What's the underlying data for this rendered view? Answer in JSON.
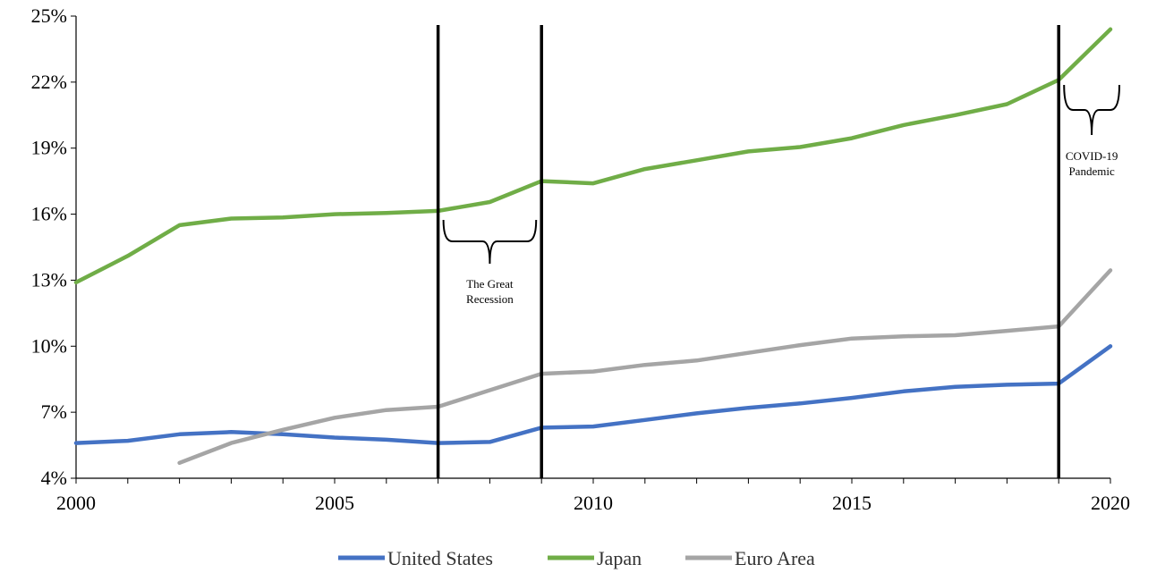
{
  "chart_data": {
    "type": "line",
    "x": [
      2000,
      2001,
      2002,
      2003,
      2004,
      2005,
      2006,
      2007,
      2008,
      2009,
      2010,
      2011,
      2012,
      2013,
      2014,
      2015,
      2016,
      2017,
      2018,
      2019,
      2020
    ],
    "series": [
      {
        "name": "United States",
        "color": "#4472C4",
        "values": [
          5.6,
          5.7,
          6.0,
          6.1,
          6.0,
          5.85,
          5.75,
          5.6,
          5.65,
          6.3,
          6.35,
          6.65,
          6.95,
          7.2,
          7.4,
          7.65,
          7.95,
          8.15,
          8.25,
          8.3,
          10.0
        ]
      },
      {
        "name": "Japan",
        "color": "#70AD47",
        "values": [
          12.9,
          14.1,
          15.5,
          15.8,
          15.85,
          16.0,
          16.05,
          16.15,
          16.55,
          17.5,
          17.4,
          18.05,
          18.45,
          18.85,
          19.05,
          19.45,
          20.05,
          20.5,
          21.0,
          22.1,
          24.4
        ]
      },
      {
        "name": "Euro Area",
        "color": "#A5A5A5",
        "values": [
          null,
          null,
          4.7,
          5.6,
          6.2,
          6.75,
          7.1,
          7.25,
          8.0,
          8.75,
          8.85,
          9.15,
          9.35,
          9.7,
          10.05,
          10.35,
          10.45,
          10.5,
          10.7,
          10.9,
          13.45
        ]
      }
    ],
    "xlim": [
      2000,
      2020
    ],
    "ylim": [
      4,
      25
    ],
    "x_ticks": [
      "2000",
      "2005",
      "2010",
      "2015",
      "2020"
    ],
    "y_ticks": [
      "4%",
      "7%",
      "10%",
      "13%",
      "16%",
      "19%",
      "22%",
      "25%"
    ],
    "vlines": [
      2007,
      2009,
      2019
    ],
    "annotations": [
      {
        "lines": [
          "The Great",
          "Recession"
        ],
        "from": 2007,
        "to": 2009
      },
      {
        "lines": [
          "COVID-19",
          "Pandemic"
        ],
        "from": 2019,
        "to": 2020
      }
    ],
    "legend_position": "bottom-center",
    "grid": false
  }
}
